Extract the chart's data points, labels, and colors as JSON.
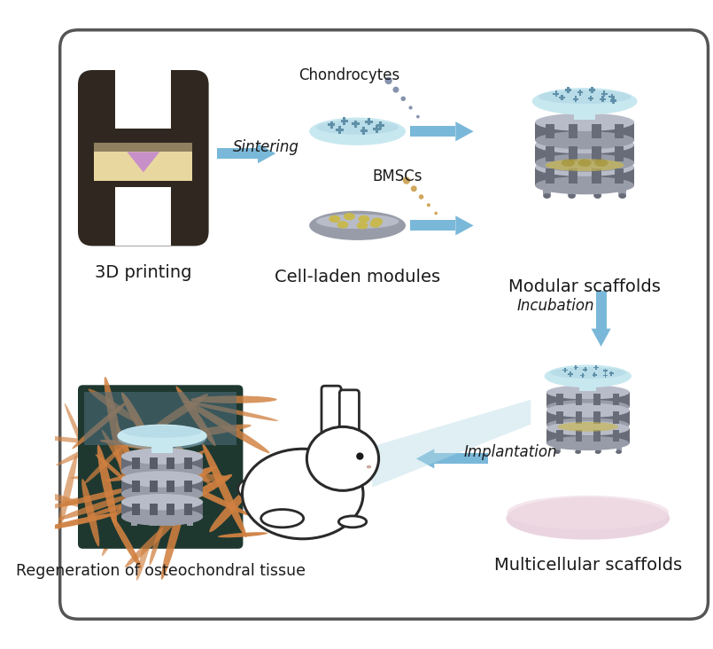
{
  "bg_color": "#ffffff",
  "border_color": "#555555",
  "title_color": "#1a1a1a",
  "arrow_color": "#7ab8d9",
  "labels": {
    "printing": "3D printing",
    "cell_laden": "Cell-laden modules",
    "modular": "Modular scaffolds",
    "incubation": "Incubation",
    "implantation": "Implantation",
    "multicellular": "Multicellular scaffolds",
    "regeneration": "Regeneration of osteochondral tissue",
    "chondrocytes": "Chondrocytes",
    "bmsc": "BMSCs",
    "sintering": "Sintering"
  },
  "colors": {
    "printer_body": "#302820",
    "printer_bed": "#e8d8a0",
    "printer_beam": "#908060",
    "laser": "#c890c8",
    "scaffold_blue_top": "#90c8d8",
    "scaffold_blue_light": "#b8dce8",
    "scaffold_blue_mid": "#c8e8f0",
    "scaffold_gray": "#989ca8",
    "scaffold_gray_dark": "#686c78",
    "scaffold_gray_light": "#b8bcc8",
    "scaffold_yellow": "#c8b850",
    "tissue_orange": "#d08040",
    "tissue_teal": "#507080",
    "pink_dish": "#e8d0dc",
    "cell_blue": "#6090a8",
    "cell_dots_chondro": "#7080a0",
    "cell_dots_bmsc": "#c89840"
  }
}
